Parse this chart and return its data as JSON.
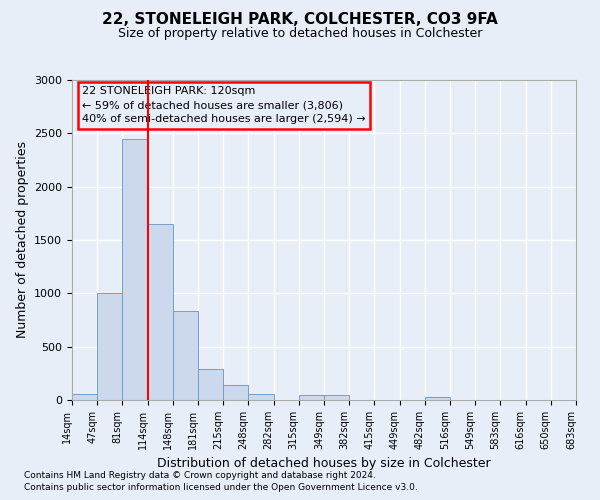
{
  "title1": "22, STONELEIGH PARK, COLCHESTER, CO3 9FA",
  "title2": "Size of property relative to detached houses in Colchester",
  "xlabel": "Distribution of detached houses by size in Colchester",
  "ylabel": "Number of detached properties",
  "footnote1": "Contains HM Land Registry data © Crown copyright and database right 2024.",
  "footnote2": "Contains public sector information licensed under the Open Government Licence v3.0.",
  "annotation_line1": "22 STONELEIGH PARK: 120sqm",
  "annotation_line2": "← 59% of detached houses are smaller (3,806)",
  "annotation_line3": "40% of semi-detached houses are larger (2,594) →",
  "bar_color": "#ccd9ed",
  "bar_edge_color": "#6fa0cc",
  "bar_values": [
    60,
    1000,
    2450,
    1650,
    830,
    290,
    140,
    55,
    0,
    50,
    50,
    0,
    0,
    0,
    30,
    0,
    0,
    0,
    0,
    0
  ],
  "bin_labels": [
    "14sqm",
    "47sqm",
    "81sqm",
    "114sqm",
    "148sqm",
    "181sqm",
    "215sqm",
    "248sqm",
    "282sqm",
    "315sqm",
    "349sqm",
    "382sqm",
    "415sqm",
    "449sqm",
    "482sqm",
    "516sqm",
    "549sqm",
    "583sqm",
    "616sqm",
    "650sqm",
    "683sqm"
  ],
  "red_line_x": 3,
  "ylim": [
    0,
    3000
  ],
  "yticks": [
    0,
    500,
    1000,
    1500,
    2000,
    2500,
    3000
  ],
  "background_color": "#e8eef8",
  "grid_color": "#ffffff",
  "title1_fontsize": 11,
  "title2_fontsize": 9,
  "ylabel_fontsize": 9,
  "xlabel_fontsize": 9,
  "tick_fontsize": 8,
  "annot_fontsize": 8,
  "footnote_fontsize": 6.5
}
